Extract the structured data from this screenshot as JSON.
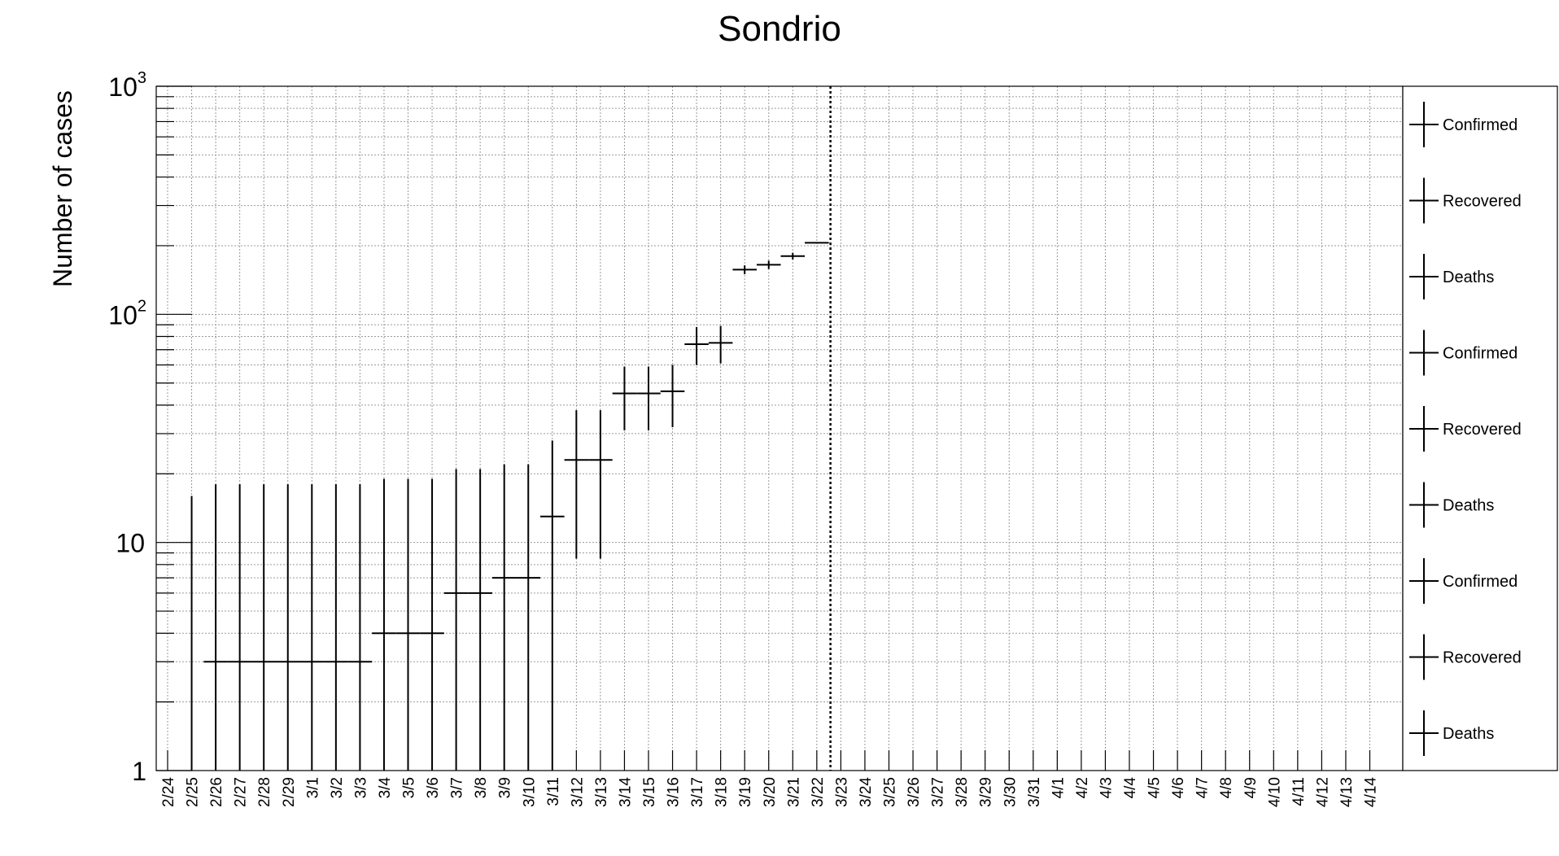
{
  "chart_data": {
    "type": "scatter",
    "title": "Sondrio",
    "xlabel": "",
    "ylabel": "Number of cases",
    "y_scale": "log",
    "ylim": [
      1,
      1000
    ],
    "y_ticks": [
      {
        "value": 1,
        "base": "1",
        "exp": ""
      },
      {
        "value": 10,
        "base": "10",
        "exp": ""
      },
      {
        "value": 100,
        "base": "10",
        "exp": "2"
      },
      {
        "value": 1000,
        "base": "10",
        "exp": "3"
      }
    ],
    "grid": true,
    "legend_position": "right",
    "categories": [
      "2/24",
      "2/25",
      "2/26",
      "2/27",
      "2/28",
      "2/29",
      "3/1",
      "3/2",
      "3/3",
      "3/4",
      "3/5",
      "3/6",
      "3/7",
      "3/8",
      "3/9",
      "3/10",
      "3/11",
      "3/12",
      "3/13",
      "3/14",
      "3/15",
      "3/16",
      "3/17",
      "3/18",
      "3/19",
      "3/20",
      "3/21",
      "3/22",
      "3/23",
      "3/24",
      "3/25",
      "3/26",
      "3/27",
      "3/28",
      "3/29",
      "3/30",
      "3/31",
      "4/1",
      "4/2",
      "4/3",
      "4/4",
      "4/5",
      "4/6",
      "4/7",
      "4/8",
      "4/9",
      "4/10",
      "4/11",
      "4/12",
      "4/13",
      "4/14"
    ],
    "vline_after": "3/22",
    "points": [
      {
        "x": "2/25",
        "y": 1,
        "err_up": 16,
        "err_lo": 1,
        "xl": 0,
        "xr": 0
      },
      {
        "x": "2/26",
        "y": 3,
        "err_up": 18,
        "err_lo": 1,
        "xl": 0.5,
        "xr": 0.5
      },
      {
        "x": "2/27",
        "y": 3,
        "err_up": 18,
        "err_lo": 1,
        "xl": 0.5,
        "xr": 0.5
      },
      {
        "x": "2/28",
        "y": 3,
        "err_up": 18,
        "err_lo": 1,
        "xl": 0.5,
        "xr": 0.5
      },
      {
        "x": "2/29",
        "y": 3,
        "err_up": 18,
        "err_lo": 1,
        "xl": 0.5,
        "xr": 0.5
      },
      {
        "x": "3/1",
        "y": 3,
        "err_up": 18,
        "err_lo": 1,
        "xl": 0.5,
        "xr": 0.5
      },
      {
        "x": "3/2",
        "y": 3,
        "err_up": 18,
        "err_lo": 1,
        "xl": 0.5,
        "xr": 0.5
      },
      {
        "x": "3/3",
        "y": 3,
        "err_up": 18,
        "err_lo": 1,
        "xl": 0.5,
        "xr": 0.5
      },
      {
        "x": "3/4",
        "y": 4,
        "err_up": 19,
        "err_lo": 1,
        "xl": 0.5,
        "xr": 0.5
      },
      {
        "x": "3/5",
        "y": 4,
        "err_up": 19,
        "err_lo": 1,
        "xl": 0.5,
        "xr": 0.5
      },
      {
        "x": "3/6",
        "y": 4,
        "err_up": 19,
        "err_lo": 1,
        "xl": 0.5,
        "xr": 0.5
      },
      {
        "x": "3/7",
        "y": 6,
        "err_up": 21,
        "err_lo": 1,
        "xl": 0.5,
        "xr": 0.5
      },
      {
        "x": "3/8",
        "y": 6,
        "err_up": 21,
        "err_lo": 1,
        "xl": 0.5,
        "xr": 0.5
      },
      {
        "x": "3/9",
        "y": 7,
        "err_up": 22,
        "err_lo": 1,
        "xl": 0.5,
        "xr": 0.5
      },
      {
        "x": "3/10",
        "y": 7,
        "err_up": 22,
        "err_lo": 1,
        "xl": 0.5,
        "xr": 0.5
      },
      {
        "x": "3/11",
        "y": 13,
        "err_up": 28,
        "err_lo": 1,
        "xl": 0.5,
        "xr": 0.5
      },
      {
        "x": "3/12",
        "y": 23,
        "err_up": 38,
        "err_lo": 8.5,
        "xl": 0.5,
        "xr": 0.5
      },
      {
        "x": "3/13",
        "y": 23,
        "err_up": 38,
        "err_lo": 8.5,
        "xl": 0.5,
        "xr": 0.5
      },
      {
        "x": "3/14",
        "y": 45,
        "err_up": 59,
        "err_lo": 31,
        "xl": 0.5,
        "xr": 0.5
      },
      {
        "x": "3/15",
        "y": 45,
        "err_up": 59,
        "err_lo": 31,
        "xl": 0.5,
        "xr": 0.5
      },
      {
        "x": "3/16",
        "y": 46,
        "err_up": 60,
        "err_lo": 32,
        "xl": 0.5,
        "xr": 0.5
      },
      {
        "x": "3/17",
        "y": 74,
        "err_up": 88,
        "err_lo": 60,
        "xl": 0.5,
        "xr": 0.5
      },
      {
        "x": "3/18",
        "y": 75,
        "err_up": 89,
        "err_lo": 61,
        "xl": 0.5,
        "xr": 0.5
      },
      {
        "x": "3/19",
        "y": 157,
        "err_up": 164,
        "err_lo": 150,
        "xl": 0.5,
        "xr": 0.5
      },
      {
        "x": "3/20",
        "y": 165,
        "err_up": 172,
        "err_lo": 158,
        "xl": 0.5,
        "xr": 0.5
      },
      {
        "x": "3/21",
        "y": 180,
        "err_up": 186,
        "err_lo": 174,
        "xl": 0.5,
        "xr": 0.5
      },
      {
        "x": "3/22",
        "y": 206,
        "err_up": 206,
        "err_lo": 206,
        "xl": 0.5,
        "xr": 0.5
      }
    ],
    "legend": [
      {
        "label": "Confirmed"
      },
      {
        "label": "Recovered"
      },
      {
        "label": "Deaths"
      },
      {
        "label": "Confirmed"
      },
      {
        "label": "Recovered"
      },
      {
        "label": "Deaths"
      },
      {
        "label": "Confirmed"
      },
      {
        "label": "Recovered"
      },
      {
        "label": "Deaths"
      }
    ]
  }
}
